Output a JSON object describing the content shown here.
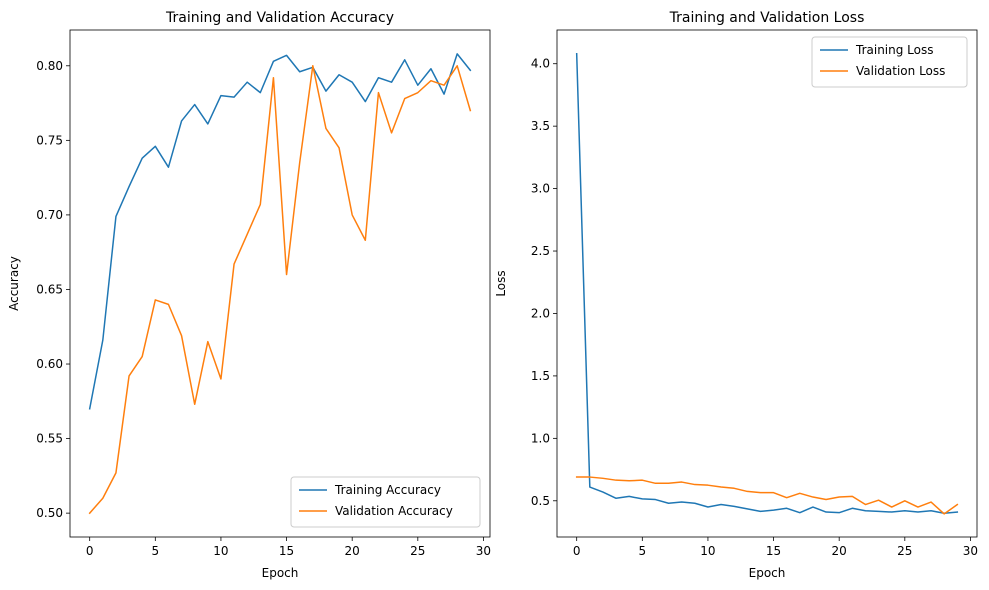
{
  "chart_data": [
    {
      "type": "line",
      "title": "Training and Validation Accuracy",
      "xlabel": "Epoch",
      "ylabel": "Accuracy",
      "xlim": [
        -1.5,
        30.5
      ],
      "ylim": [
        0.484,
        0.824
      ],
      "xticks": [
        0,
        5,
        10,
        15,
        20,
        25,
        30
      ],
      "xtick_labels": [
        "0",
        "5",
        "10",
        "15",
        "20",
        "25",
        "30"
      ],
      "yticks": [
        0.5,
        0.55,
        0.6,
        0.65,
        0.7,
        0.75,
        0.8
      ],
      "ytick_labels": [
        "0.50",
        "0.55",
        "0.60",
        "0.65",
        "0.70",
        "0.75",
        "0.80"
      ],
      "grid": false,
      "legend_position": "lower right",
      "x": [
        0,
        1,
        2,
        3,
        4,
        5,
        6,
        7,
        8,
        9,
        10,
        11,
        12,
        13,
        14,
        15,
        16,
        17,
        18,
        19,
        20,
        21,
        22,
        23,
        24,
        25,
        26,
        27,
        28,
        29
      ],
      "series": [
        {
          "name": "Training Accuracy",
          "color": "#1f77b4",
          "values": [
            0.57,
            0.616,
            0.699,
            0.719,
            0.738,
            0.746,
            0.732,
            0.763,
            0.774,
            0.761,
            0.78,
            0.779,
            0.789,
            0.782,
            0.803,
            0.807,
            0.796,
            0.799,
            0.783,
            0.794,
            0.789,
            0.776,
            0.792,
            0.789,
            0.804,
            0.787,
            0.798,
            0.781,
            0.808,
            0.797
          ]
        },
        {
          "name": "Validation Accuracy",
          "color": "#ff7f0e",
          "values": [
            0.5,
            0.51,
            0.527,
            0.592,
            0.605,
            0.643,
            0.64,
            0.619,
            0.573,
            0.615,
            0.59,
            0.667,
            0.687,
            0.707,
            0.792,
            0.66,
            0.735,
            0.8,
            0.758,
            0.745,
            0.7,
            0.683,
            0.782,
            0.755,
            0.778,
            0.782,
            0.79,
            0.787,
            0.8,
            0.77
          ]
        }
      ]
    },
    {
      "type": "line",
      "title": "Training and Validation Loss",
      "xlabel": "Epoch",
      "ylabel": "Loss",
      "xlim": [
        -1.5,
        30.5
      ],
      "ylim": [
        0.21,
        4.27
      ],
      "xticks": [
        0,
        5,
        10,
        15,
        20,
        25,
        30
      ],
      "xtick_labels": [
        "0",
        "5",
        "10",
        "15",
        "20",
        "25",
        "30"
      ],
      "yticks": [
        0.5,
        1.0,
        1.5,
        2.0,
        2.5,
        3.0,
        3.5,
        4.0
      ],
      "ytick_labels": [
        "0.5",
        "1.0",
        "1.5",
        "2.0",
        "2.5",
        "3.0",
        "3.5",
        "4.0"
      ],
      "grid": false,
      "legend_position": "upper right",
      "x": [
        0,
        1,
        2,
        3,
        4,
        5,
        6,
        7,
        8,
        9,
        10,
        11,
        12,
        13,
        14,
        15,
        16,
        17,
        18,
        19,
        20,
        21,
        22,
        23,
        24,
        25,
        26,
        27,
        28,
        29
      ],
      "series": [
        {
          "name": "Training Loss",
          "color": "#1f77b4",
          "values": [
            4.08,
            0.61,
            0.57,
            0.52,
            0.535,
            0.515,
            0.51,
            0.48,
            0.49,
            0.48,
            0.45,
            0.47,
            0.455,
            0.435,
            0.415,
            0.425,
            0.44,
            0.405,
            0.45,
            0.41,
            0.405,
            0.44,
            0.42,
            0.415,
            0.41,
            0.42,
            0.41,
            0.42,
            0.4,
            0.41
          ]
        },
        {
          "name": "Validation Loss",
          "color": "#ff7f0e",
          "values": [
            0.69,
            0.69,
            0.68,
            0.665,
            0.66,
            0.665,
            0.64,
            0.64,
            0.65,
            0.63,
            0.625,
            0.61,
            0.6,
            0.575,
            0.565,
            0.565,
            0.525,
            0.56,
            0.53,
            0.51,
            0.53,
            0.535,
            0.47,
            0.505,
            0.45,
            0.5,
            0.45,
            0.49,
            0.395,
            0.47
          ]
        }
      ]
    }
  ]
}
